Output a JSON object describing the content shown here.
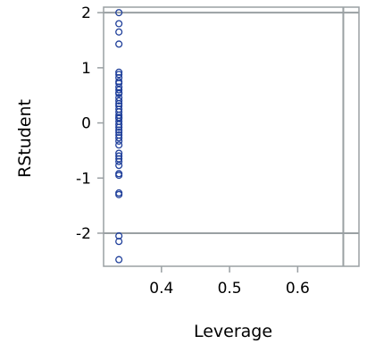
{
  "chart_data": {
    "type": "scatter",
    "title": "",
    "xlabel": "Leverage",
    "ylabel": "RStudent",
    "xlim": [
      0.315,
      0.69
    ],
    "ylim": [
      -2.6,
      2.1
    ],
    "xticks": [
      0.4,
      0.5,
      0.6
    ],
    "xtick_labels": [
      "0.4",
      "0.5",
      "0.6"
    ],
    "yticks": [
      -2,
      -1,
      0,
      1,
      2
    ],
    "ytick_labels": [
      "-2",
      "-1",
      "0",
      "1",
      "2"
    ],
    "reference_lines": {
      "y": [
        2,
        -2
      ],
      "x": [
        0.667
      ]
    },
    "grid": false,
    "legend": "none",
    "colors": {
      "marker": "#1f3f9a",
      "frame": "#9aa0a3",
      "reference": "#9aa0a3"
    },
    "marker": "open-circle",
    "points": {
      "x": [
        0.3375,
        0.3375,
        0.3375,
        0.3375,
        0.3375,
        0.3375,
        0.3375,
        0.3375,
        0.3375,
        0.3375,
        0.3375,
        0.3375,
        0.3375,
        0.3375,
        0.3375,
        0.3375,
        0.3375,
        0.3375,
        0.3375,
        0.3375,
        0.3375,
        0.3375,
        0.3375,
        0.3375,
        0.3375,
        0.3375,
        0.3375,
        0.3375,
        0.3375,
        0.3375,
        0.3375,
        0.3375,
        0.3375,
        0.3375,
        0.3375,
        0.3375,
        0.3375,
        0.3375,
        0.3375,
        0.3375,
        0.3375,
        0.3375,
        0.3375
      ],
      "y": [
        2.0,
        1.8,
        1.65,
        1.43,
        0.92,
        0.88,
        0.82,
        0.72,
        0.65,
        0.6,
        0.53,
        0.46,
        0.4,
        0.35,
        0.31,
        0.25,
        0.2,
        0.14,
        0.08,
        0.03,
        -0.03,
        -0.08,
        -0.13,
        -0.17,
        -0.22,
        -0.27,
        -0.33,
        -0.55,
        -0.6,
        -0.65,
        -0.7,
        -0.77,
        -0.92,
        -0.95,
        -1.27,
        -1.3,
        -2.05,
        -2.15,
        -2.48,
        0.75,
        0.1,
        -0.4,
        0.55
      ]
    }
  }
}
